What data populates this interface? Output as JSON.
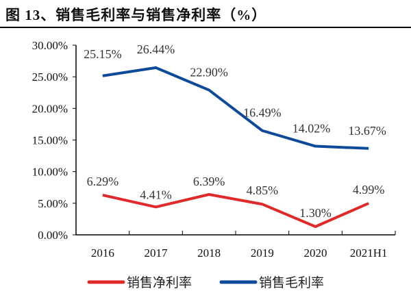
{
  "title": "图 13、销售毛利率与销售净利率（%）",
  "chart_data": {
    "type": "line",
    "title": "图 13、销售毛利率与销售净利率（%）",
    "categories": [
      "2016",
      "2017",
      "2018",
      "2019",
      "2020",
      "2021H1"
    ],
    "ylim": [
      0,
      30
    ],
    "yticks": [
      "0.00%",
      "5.00%",
      "10.00%",
      "15.00%",
      "20.00%",
      "25.00%",
      "30.00%"
    ],
    "grid": false,
    "legend_position": "bottom",
    "series": [
      {
        "name": "销售净利率",
        "color": "#e02a2a",
        "values": [
          6.29,
          4.41,
          6.39,
          4.85,
          1.3,
          4.99
        ],
        "labels": [
          "6.29%",
          "4.41%",
          "6.39%",
          "4.85%",
          "1.30%",
          "4.99%"
        ]
      },
      {
        "name": "销售毛利率",
        "color": "#0d4a9a",
        "values": [
          25.15,
          26.44,
          22.9,
          16.49,
          14.02,
          13.67
        ],
        "labels": [
          "25.15%",
          "26.44%",
          "22.90%",
          "16.49%",
          "14.02%",
          "13.67%"
        ]
      }
    ]
  }
}
